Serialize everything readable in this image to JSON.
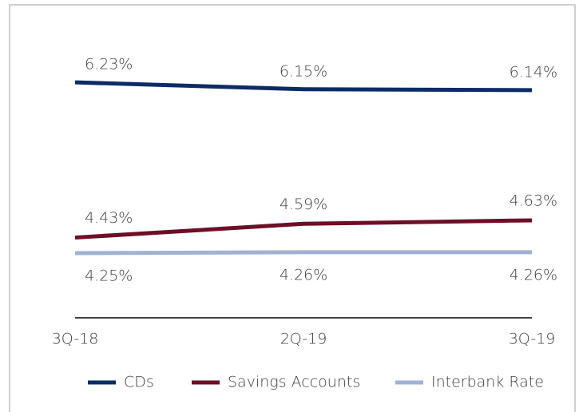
{
  "chart_data": {
    "type": "line",
    "categories": [
      "3Q-18",
      "2Q-19",
      "3Q-19"
    ],
    "series": [
      {
        "name": "CDs",
        "color": "#0c2c67",
        "values": [
          6.23,
          6.15,
          6.14
        ],
        "value_labels": [
          "6.23%",
          "6.15%",
          "6.14%"
        ]
      },
      {
        "name": "Savings Accounts",
        "color": "#6d0f26",
        "values": [
          4.43,
          4.59,
          4.63
        ],
        "value_labels": [
          "4.43%",
          "4.59%",
          "4.63%"
        ]
      },
      {
        "name": "Interbank Rate",
        "color": "#9fb2d2",
        "values": [
          4.25,
          4.26,
          4.26
        ],
        "value_labels": [
          "4.25%",
          "4.26%",
          "4.26%"
        ]
      }
    ],
    "ylim": [
      3.5,
      7.0
    ],
    "grid": false,
    "legend": "bottom"
  }
}
